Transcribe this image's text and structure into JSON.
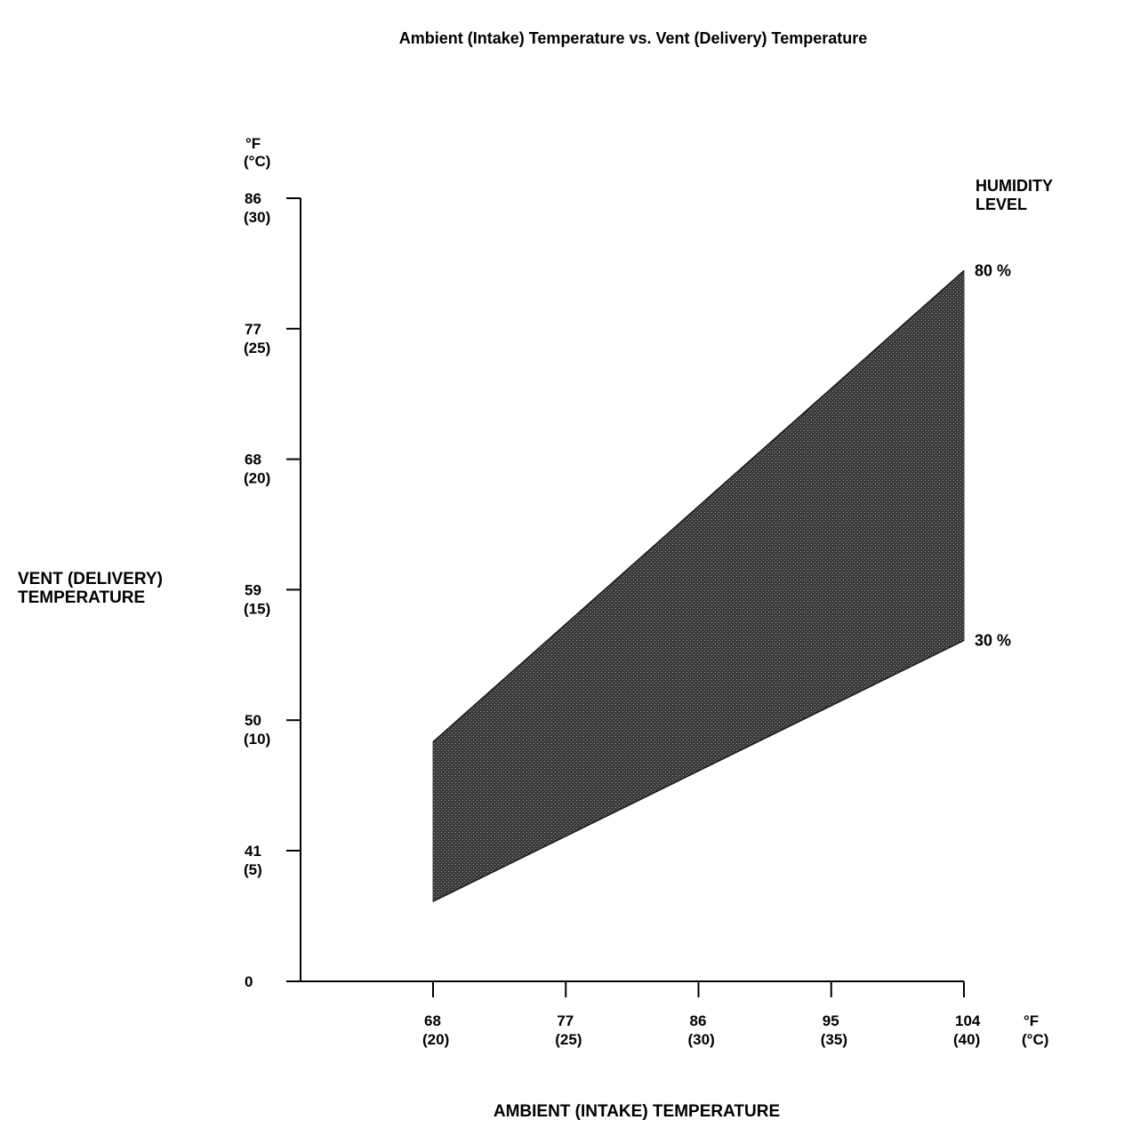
{
  "chart_data": {
    "type": "area",
    "title": "Ambient (Intake) Temperature vs. Vent (Delivery) Temperature",
    "xlabel": "AMBIENT (INTAKE) TEMPERATURE",
    "ylabel_lines": [
      "VENT (DELIVERY)",
      "TEMPERATURE"
    ],
    "x_unit_lines": [
      "°F",
      "(°C)"
    ],
    "y_unit_lines": [
      "°F",
      "(°C)"
    ],
    "x_ticks": [
      {
        "value": 68,
        "label_f": "68",
        "label_c": "(20)"
      },
      {
        "value": 77,
        "label_f": "77",
        "label_c": "(25)"
      },
      {
        "value": 86,
        "label_f": "86",
        "label_c": "(30)"
      },
      {
        "value": 95,
        "label_f": "95",
        "label_c": "(35)"
      },
      {
        "value": 104,
        "label_f": "104",
        "label_c": "(40)"
      }
    ],
    "y_ticks": [
      {
        "value": 0,
        "label_f": "0",
        "label_c": ""
      },
      {
        "value": 41,
        "label_f": "41",
        "label_c": "(5)"
      },
      {
        "value": 50,
        "label_f": "50",
        "label_c": "(10)"
      },
      {
        "value": 59,
        "label_f": "59",
        "label_c": "(15)"
      },
      {
        "value": 68,
        "label_f": "68",
        "label_c": "(20)"
      },
      {
        "value": 77,
        "label_f": "77",
        "label_c": "(25)"
      },
      {
        "value": 86,
        "label_f": "86",
        "label_c": "(30)"
      }
    ],
    "legend_title_lines": [
      "HUMIDITY",
      "LEVEL"
    ],
    "series": [
      {
        "name": "80 %",
        "x": [
          68,
          104
        ],
        "y": [
          48.5,
          81
        ]
      },
      {
        "name": "30 %",
        "x": [
          68,
          104
        ],
        "y": [
          37.5,
          55.5
        ]
      }
    ],
    "fill_color": "#3a3a3a"
  }
}
